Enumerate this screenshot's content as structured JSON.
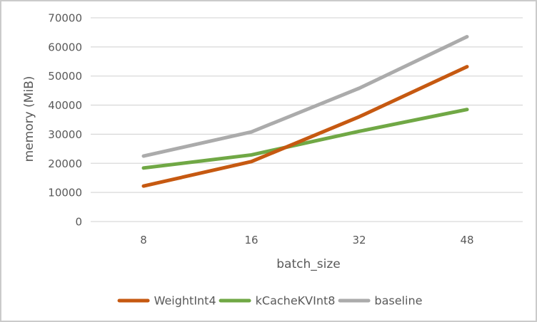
{
  "figure": {
    "background": "#ffffff",
    "border_color": "#cbcbcb",
    "text_color": "#595959",
    "grid_color": "#d9d9d9"
  },
  "chart_data": {
    "type": "line",
    "title": "",
    "xlabel": "batch_size",
    "ylabel": "memory (MiB)",
    "categories": [
      "8",
      "16",
      "32",
      "48"
    ],
    "series": [
      {
        "name": "WeightInt4",
        "color": "#C65911",
        "values": [
          12200,
          20600,
          36000,
          53200
        ]
      },
      {
        "name": "kCacheKVInt8",
        "color": "#70A845",
        "values": [
          18400,
          22900,
          31000,
          38500
        ]
      },
      {
        "name": "baseline",
        "color": "#ABABAB",
        "values": [
          22500,
          30800,
          45800,
          63500
        ]
      }
    ],
    "ylim": [
      0,
      70000
    ],
    "yticks": [
      0,
      10000,
      20000,
      30000,
      40000,
      50000,
      60000,
      70000
    ],
    "grid": "horizontal-only",
    "legend_position": "bottom-center",
    "x_axis_scale": "categorical-even-spacing"
  }
}
